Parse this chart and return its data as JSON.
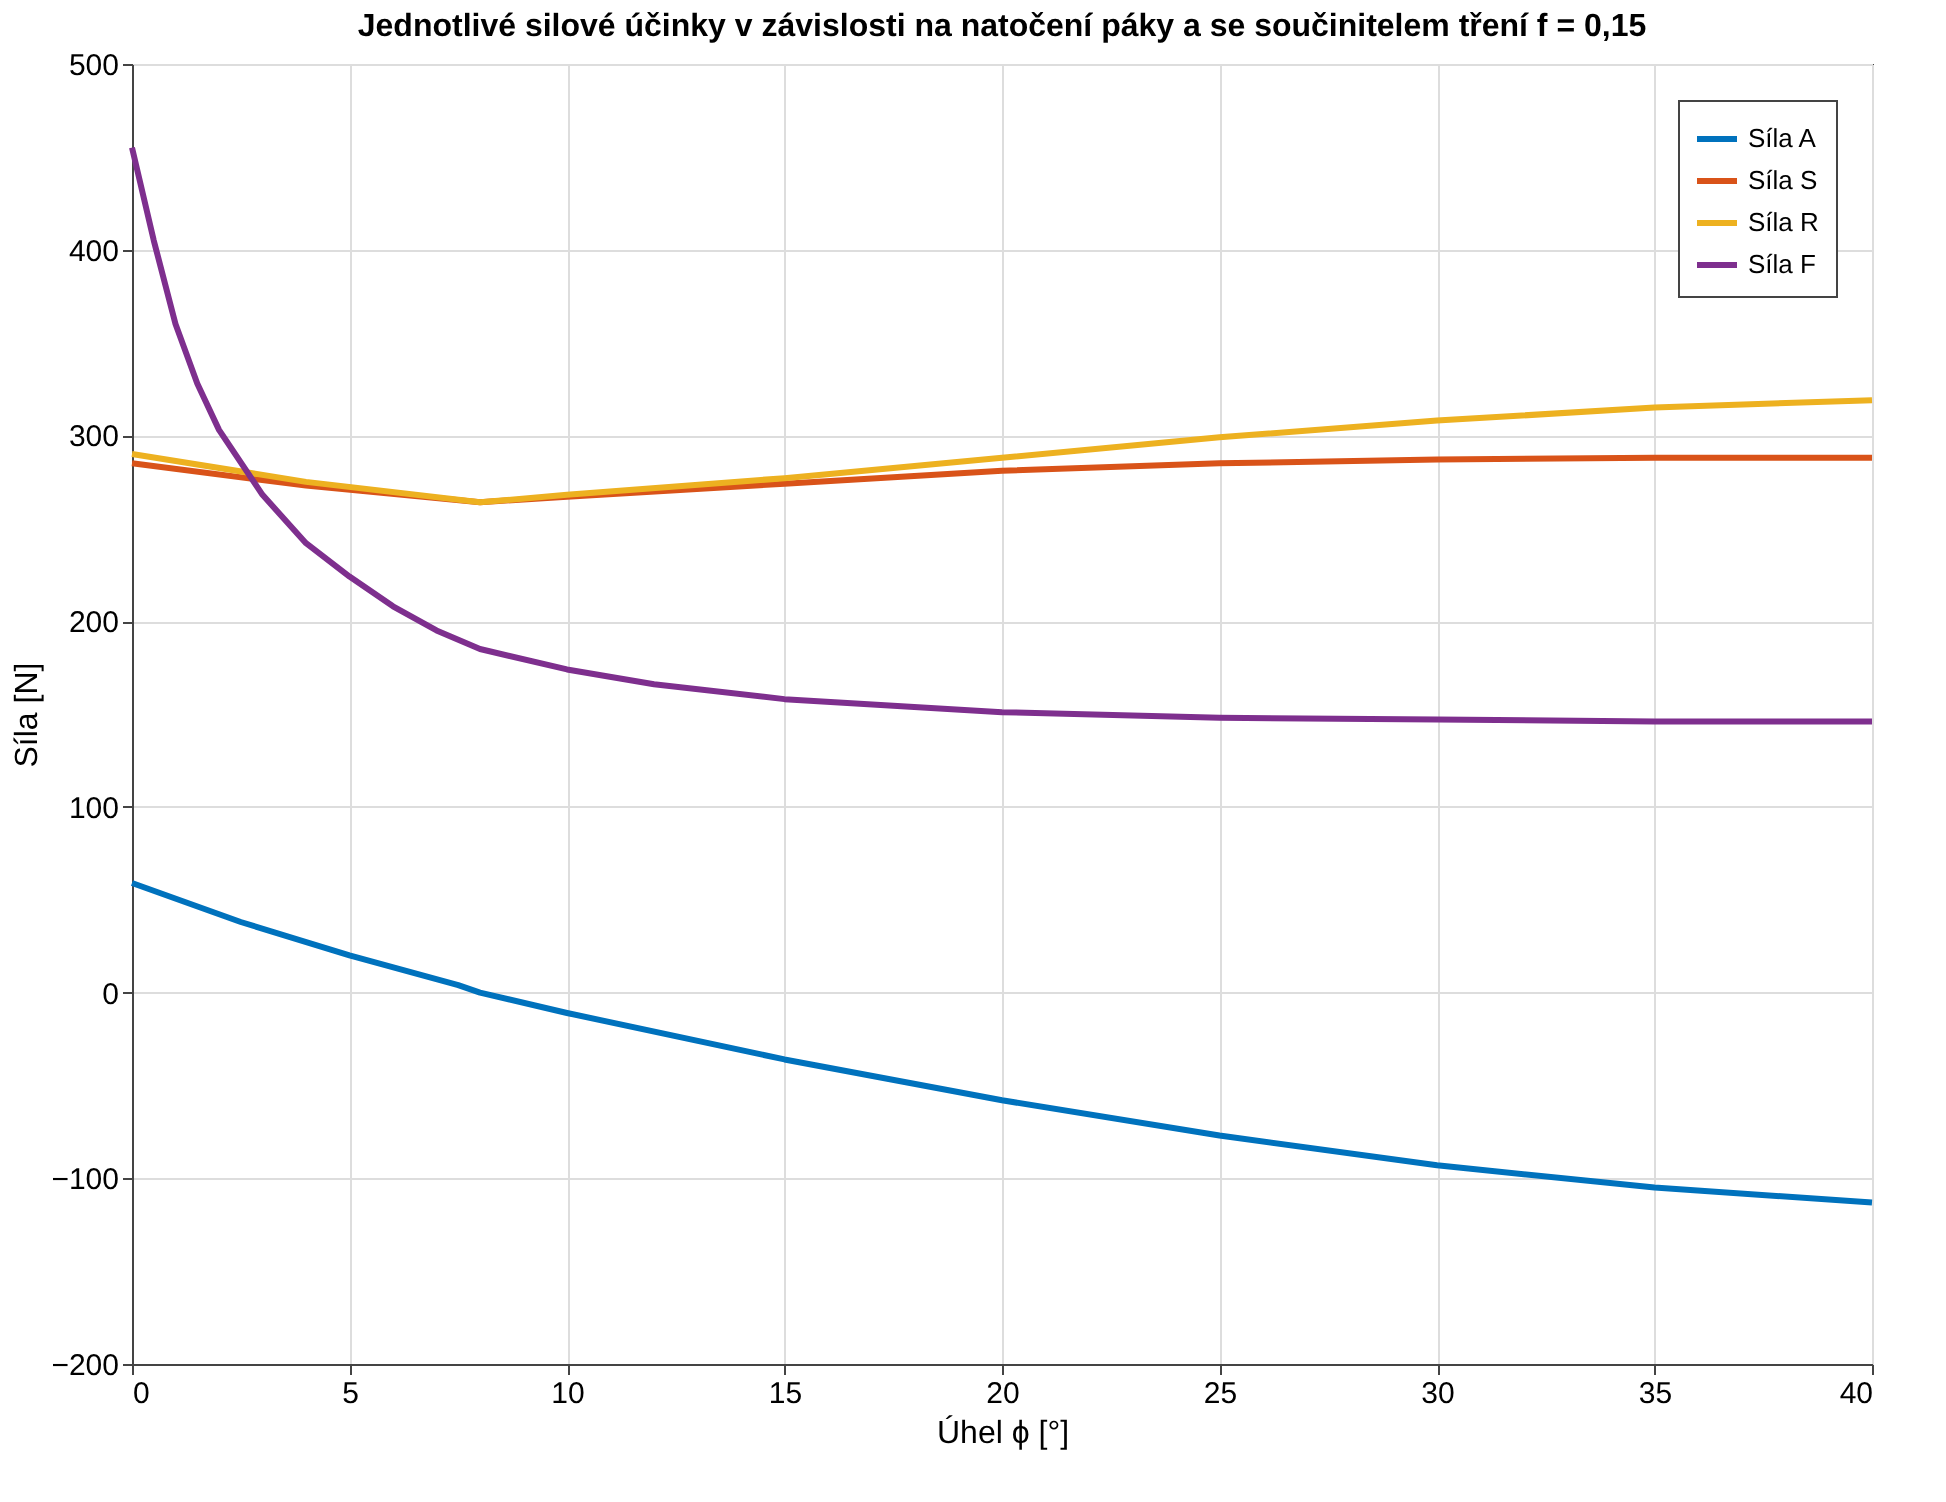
{
  "chart_data": {
    "type": "line",
    "title": "Jednotlivé silové účinky v závislosti na natočení páky a se součinitelem tření f = 0,15",
    "xlabel": "Úhel ϕ [°]",
    "ylabel": "Síla [N]",
    "xlim": [
      0,
      40
    ],
    "xticks": [
      0,
      5,
      10,
      15,
      20,
      25,
      30,
      35,
      40
    ],
    "ylim": [
      -200,
      500
    ],
    "yticks": [
      -200,
      -100,
      0,
      100,
      200,
      300,
      400,
      500
    ],
    "grid": true,
    "legend": "top right",
    "line_style": "solid",
    "marker": "none",
    "series": [
      {
        "name": "Síla A",
        "color": "#0072bd",
        "x": [
          0,
          2.5,
          5,
          7.5,
          8,
          10,
          15,
          20,
          25,
          30,
          35,
          40
        ],
        "values": [
          59,
          38,
          20,
          4,
          0,
          -11,
          -36,
          -58,
          -77,
          -93,
          -105,
          -113
        ]
      },
      {
        "name": "Síla S",
        "color": "#d95319",
        "x": [
          0,
          4,
          8,
          10,
          15,
          20,
          25,
          30,
          35,
          40
        ],
        "values": [
          285,
          273,
          264,
          267,
          274,
          281,
          285,
          287,
          288,
          288
        ]
      },
      {
        "name": "Síla R",
        "color": "#edb120",
        "x": [
          0,
          4,
          8,
          10,
          15,
          20,
          25,
          30,
          35,
          40
        ],
        "values": [
          290,
          275,
          264,
          268,
          277,
          288,
          299,
          308,
          315,
          319
        ]
      },
      {
        "name": "Síla F",
        "color": "#7e2f8e",
        "x": [
          0,
          0.5,
          1,
          1.5,
          2,
          3,
          4,
          5,
          6,
          7,
          8,
          10,
          12,
          15,
          20,
          25,
          30,
          35,
          40
        ],
        "values": [
          455,
          405,
          360,
          328,
          303,
          268,
          242,
          224,
          208,
          195,
          185,
          174,
          166,
          158,
          151,
          148,
          147,
          146,
          146
        ]
      }
    ]
  }
}
